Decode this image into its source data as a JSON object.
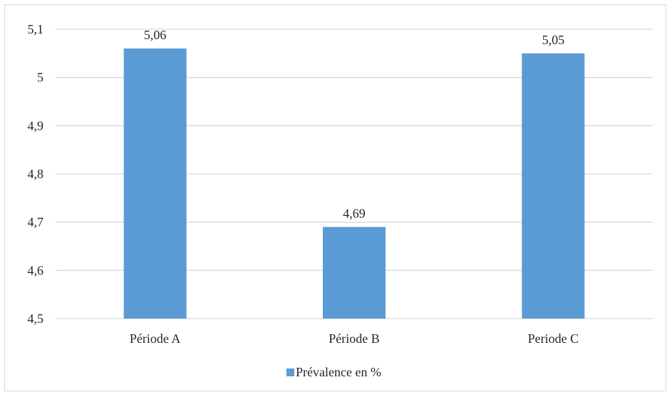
{
  "chart_data": {
    "type": "bar",
    "title": "",
    "xlabel": "",
    "ylabel": "",
    "categories": [
      "Période A",
      "Période B",
      "Periode C"
    ],
    "series": [
      {
        "name": "Prévalence en %",
        "values": [
          5.06,
          4.69,
          5.05
        ],
        "value_labels": [
          "5,06",
          "4,69",
          "5,05"
        ]
      }
    ],
    "ylim": [
      4.5,
      5.1
    ],
    "yticks": [
      4.5,
      4.6,
      4.7,
      4.8,
      4.9,
      5.0,
      5.1
    ],
    "ytick_labels": [
      "4,5",
      "4,6",
      "4,7",
      "4,8",
      "4,9",
      "5",
      "5,1"
    ],
    "grid": true,
    "legend_position": "bottom",
    "colors": {
      "bar": "#5b9bd5",
      "grid": "#d9d9d9",
      "text": "#262626"
    }
  }
}
